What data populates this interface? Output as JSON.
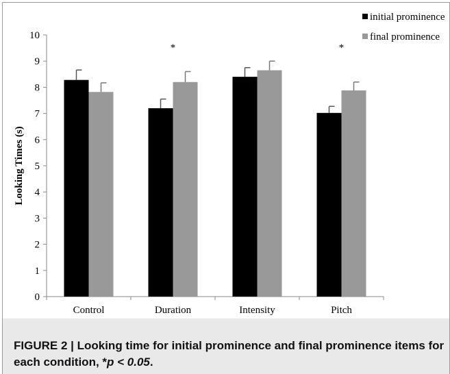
{
  "chart_data": {
    "type": "bar",
    "categories": [
      "Control",
      "Duration",
      "Intensity",
      "Pitch"
    ],
    "series": [
      {
        "name": "initial prominence",
        "color": "#000000",
        "values": [
          8.28,
          7.2,
          8.4,
          7.02
        ],
        "errors": [
          0.38,
          0.35,
          0.35,
          0.25
        ]
      },
      {
        "name": "final prominence",
        "color": "#999999",
        "values": [
          7.82,
          8.2,
          8.65,
          7.88
        ],
        "errors": [
          0.35,
          0.4,
          0.35,
          0.32
        ]
      }
    ],
    "significance": [
      "",
      "*",
      "",
      "*"
    ],
    "xlabel": "",
    "ylabel": "Looking Times (s)",
    "ylim": [
      0,
      10
    ],
    "yticks": [
      0,
      1,
      2,
      3,
      4,
      5,
      6,
      7,
      8,
      9,
      10
    ],
    "grid": false,
    "legend": "top-right"
  },
  "caption": {
    "text": "FIGURE 2 | Looking time for initial prominence and final prominence items for each condition, *",
    "sig": "p < 0.05",
    "end": "."
  }
}
